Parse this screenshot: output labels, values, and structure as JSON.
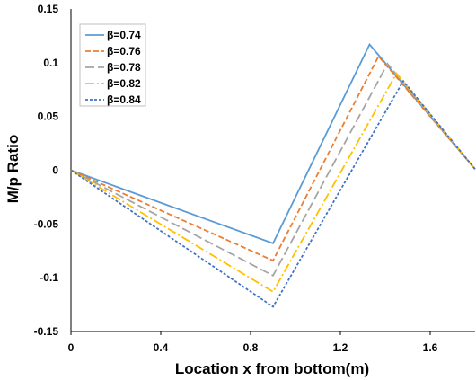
{
  "chart_data": {
    "type": "line",
    "xlabel": "Location x from bottom(m)",
    "ylabel": "M/p Ratio",
    "xlim": [
      0,
      1.8
    ],
    "ylim": [
      -0.15,
      0.15
    ],
    "x_ticks": [
      0,
      0.4,
      0.8,
      1.2,
      1.6
    ],
    "x_tick_labels": [
      "0",
      "0.4",
      "0.8",
      "1.2",
      "1.6"
    ],
    "y_ticks": [
      -0.15,
      -0.1,
      -0.05,
      0,
      0.05,
      0.1,
      0.15
    ],
    "y_tick_labels": [
      "-0.15",
      "-0.1",
      "-0.05",
      "0",
      "0.05",
      "0.1",
      "0.15"
    ],
    "grid": false,
    "legend_position": "top-left",
    "series": [
      {
        "name": "β=0.74",
        "color": "#5b9bd5",
        "dash": "solid",
        "x": [
          0,
          0.9,
          1.33,
          1.8
        ],
        "y": [
          0,
          -0.068,
          0.117,
          0.001
        ]
      },
      {
        "name": "β=0.76",
        "color": "#ed7d31",
        "dash": "dashed",
        "x": [
          0,
          0.9,
          1.37,
          1.8
        ],
        "y": [
          0,
          -0.084,
          0.106,
          0.001
        ]
      },
      {
        "name": "β=0.78",
        "color": "#a5a5a5",
        "dash": "longdash",
        "x": [
          0,
          0.9,
          1.41,
          1.8
        ],
        "y": [
          0,
          -0.098,
          0.099,
          0.001
        ]
      },
      {
        "name": "β=0.82",
        "color": "#ffc000",
        "dash": "dashdot",
        "x": [
          0,
          0.9,
          1.45,
          1.8
        ],
        "y": [
          0,
          -0.113,
          0.09,
          0.001
        ]
      },
      {
        "name": "β=0.84",
        "color": "#4472c4",
        "dash": "dotted",
        "x": [
          0,
          0.9,
          1.48,
          1.8
        ],
        "y": [
          0,
          -0.127,
          0.083,
          0.001
        ]
      }
    ]
  }
}
